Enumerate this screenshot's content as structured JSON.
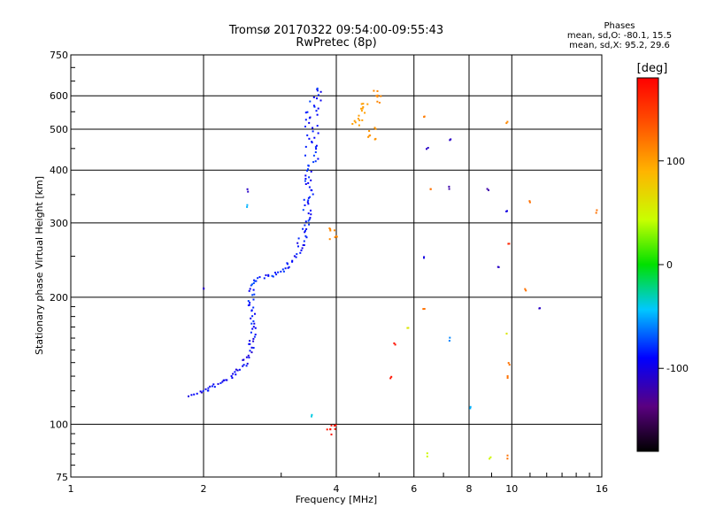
{
  "chart_data": {
    "type": "scatter",
    "title": "Tromsø 20170322 09:54:00-09:55:43",
    "subtitle": "RwPretec (8p)",
    "xlabel": "Frequency [MHz]",
    "ylabel": "Stationary phase Virtual Height [km]",
    "x_scale": "log",
    "y_scale": "log",
    "xlim": [
      1,
      16
    ],
    "ylim": [
      75,
      750
    ],
    "x_ticks": [
      1,
      2,
      4,
      6,
      8,
      10,
      16
    ],
    "y_ticks": [
      75,
      100,
      200,
      300,
      400,
      500,
      600,
      750
    ],
    "grid": true,
    "colorbar": {
      "label": "[deg]",
      "range": [
        -180,
        180
      ],
      "ticks": [
        100,
        0,
        -100
      ]
    },
    "stats": {
      "heading": "Phases",
      "o_mode": "mean, sd,O: -80.1, 15.5",
      "x_mode": "mean, sd,X:  95.2, 29.6"
    },
    "trace": [
      {
        "f": 1.87,
        "h": 118,
        "phase": -95
      },
      {
        "f": 2.05,
        "h": 122,
        "phase": -95
      },
      {
        "f": 2.25,
        "h": 128,
        "phase": -95
      },
      {
        "f": 2.45,
        "h": 138,
        "phase": -95
      },
      {
        "f": 2.55,
        "h": 150,
        "phase": -95
      },
      {
        "f": 2.58,
        "h": 170,
        "phase": -90
      },
      {
        "f": 2.55,
        "h": 200,
        "phase": -85
      },
      {
        "f": 2.6,
        "h": 220,
        "phase": -80
      },
      {
        "f": 2.8,
        "h": 225,
        "phase": -85
      },
      {
        "f": 3.05,
        "h": 235,
        "phase": -90
      },
      {
        "f": 3.25,
        "h": 255,
        "phase": -90
      },
      {
        "f": 3.38,
        "h": 290,
        "phase": -85
      },
      {
        "f": 3.45,
        "h": 350,
        "phase": -85
      },
      {
        "f": 3.48,
        "h": 420,
        "phase": -85
      },
      {
        "f": 3.5,
        "h": 530,
        "phase": -85
      },
      {
        "f": 3.55,
        "h": 640,
        "phase": -85
      }
    ],
    "scattered_points": [
      {
        "f": 4.45,
        "h": 530,
        "phase": 100
      },
      {
        "f": 4.6,
        "h": 560,
        "phase": 100
      },
      {
        "f": 4.9,
        "h": 600,
        "phase": 110
      },
      {
        "f": 4.8,
        "h": 490,
        "phase": 105
      },
      {
        "f": 3.95,
        "h": 285,
        "phase": 110
      },
      {
        "f": 6.3,
        "h": 540,
        "phase": 115
      },
      {
        "f": 6.4,
        "h": 455,
        "phase": -110
      },
      {
        "f": 6.5,
        "h": 360,
        "phase": 120
      },
      {
        "f": 6.3,
        "h": 250,
        "phase": -100
      },
      {
        "f": 7.2,
        "h": 475,
        "phase": -110
      },
      {
        "f": 7.2,
        "h": 365,
        "phase": -120
      },
      {
        "f": 7.2,
        "h": 160,
        "phase": -60
      },
      {
        "f": 5.8,
        "h": 170,
        "phase": 60
      },
      {
        "f": 5.4,
        "h": 155,
        "phase": 170
      },
      {
        "f": 5.3,
        "h": 130,
        "phase": 170
      },
      {
        "f": 6.3,
        "h": 190,
        "phase": 120
      },
      {
        "f": 8.0,
        "h": 110,
        "phase": -50
      },
      {
        "f": 8.8,
        "h": 360,
        "phase": -120
      },
      {
        "f": 9.3,
        "h": 235,
        "phase": -110
      },
      {
        "f": 9.7,
        "h": 320,
        "phase": -100
      },
      {
        "f": 9.8,
        "h": 270,
        "phase": 160
      },
      {
        "f": 9.7,
        "h": 520,
        "phase": 110
      },
      {
        "f": 9.7,
        "h": 165,
        "phase": 60
      },
      {
        "f": 9.8,
        "h": 140,
        "phase": 120
      },
      {
        "f": 9.7,
        "h": 130,
        "phase": 120
      },
      {
        "f": 10.9,
        "h": 340,
        "phase": 120
      },
      {
        "f": 10.7,
        "h": 210,
        "phase": 120
      },
      {
        "f": 11.5,
        "h": 190,
        "phase": -110
      },
      {
        "f": 15.5,
        "h": 320,
        "phase": 120
      },
      {
        "f": 6.4,
        "h": 85,
        "phase": 50
      },
      {
        "f": 8.9,
        "h": 84,
        "phase": 50
      },
      {
        "f": 9.7,
        "h": 84,
        "phase": 120
      },
      {
        "f": 3.9,
        "h": 97,
        "phase": 170
      },
      {
        "f": 3.5,
        "h": 105,
        "phase": -40
      },
      {
        "f": 2.0,
        "h": 210,
        "phase": -110
      },
      {
        "f": 2.5,
        "h": 360,
        "phase": -110
      },
      {
        "f": 2.5,
        "h": 330,
        "phase": -50
      }
    ]
  }
}
